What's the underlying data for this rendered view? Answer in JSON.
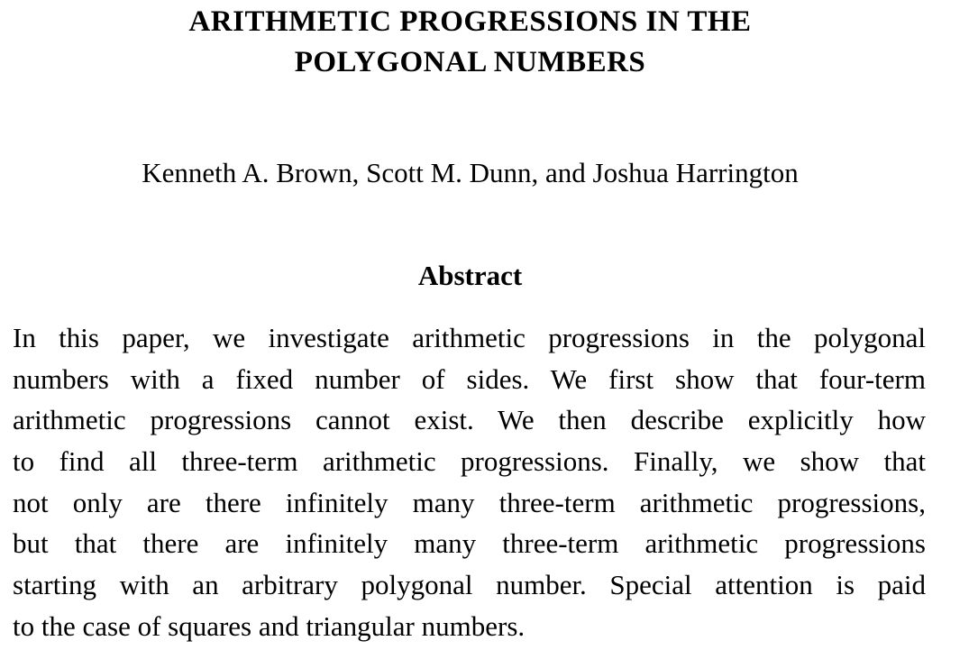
{
  "title_lines": [
    "ARITHMETIC PROGRESSIONS IN THE",
    "POLYGONAL NUMBERS"
  ],
  "authors": "Kenneth A. Brown, Scott M. Dunn, and Joshua Harrington",
  "abstract": {
    "heading": "Abstract",
    "lines": [
      "In this paper, we investigate arithmetic progressions in the polygonal",
      "numbers with a fixed number of sides.  We first show that four-term",
      "arithmetic progressions cannot exist.  We then describe explicitly how",
      "to find all three-term arithmetic progressions.  Finally, we show that",
      "not only are there infinitely many three-term arithmetic progressions,",
      "but that there are infinitely many three-term arithmetic progressions",
      "starting with an arbitrary polygonal number. Special attention is paid",
      "to the case of squares and triangular numbers."
    ]
  }
}
